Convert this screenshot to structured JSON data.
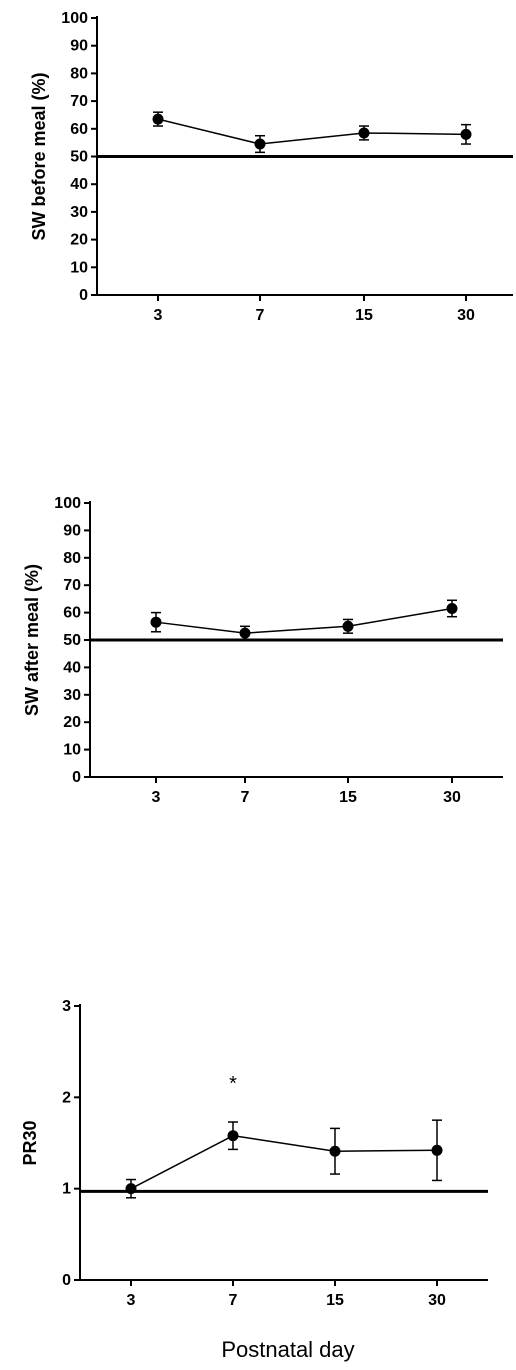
{
  "chart_data": [
    {
      "type": "line",
      "ylabel": "SW before meal (%)",
      "ylim": [
        0,
        100
      ],
      "yticks": [
        "0",
        "10",
        "20",
        "30",
        "40",
        "50",
        "60",
        "70",
        "80",
        "90",
        "100"
      ],
      "categories": [
        "3",
        "7",
        "15",
        "30"
      ],
      "series": [
        {
          "values": [
            63.5,
            54.5,
            58.5,
            58
          ],
          "error": [
            2.5,
            3,
            2.5,
            3.5
          ]
        }
      ],
      "reference_line": 50
    },
    {
      "type": "line",
      "ylabel": "SW after meal (%)",
      "ylim": [
        0,
        100
      ],
      "yticks": [
        "0",
        "10",
        "20",
        "30",
        "40",
        "50",
        "60",
        "70",
        "80",
        "90",
        "100"
      ],
      "categories": [
        "3",
        "7",
        "15",
        "30"
      ],
      "series": [
        {
          "values": [
            56.5,
            52.5,
            55,
            61.5
          ],
          "error": [
            3.5,
            2.5,
            2.5,
            3
          ]
        }
      ],
      "reference_line": 50
    },
    {
      "type": "line",
      "ylabel": "PR30",
      "ylim": [
        0,
        3
      ],
      "yticks": [
        "0",
        "1",
        "2",
        "3"
      ],
      "categories": [
        "3",
        "7",
        "15",
        "30"
      ],
      "series": [
        {
          "values": [
            1.0,
            1.58,
            1.41,
            1.42
          ],
          "error": [
            0.1,
            0.15,
            0.25,
            0.33
          ]
        }
      ],
      "reference_line": 0.97,
      "annotations": [
        {
          "text": "*",
          "category": "7"
        }
      ]
    }
  ],
  "xlabel": "Postnatal day"
}
